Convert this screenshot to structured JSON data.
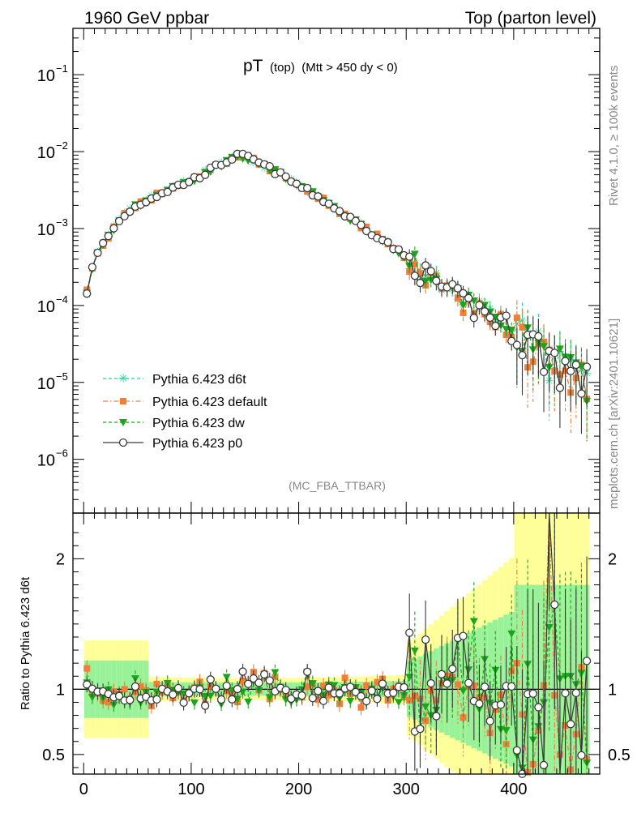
{
  "header": {
    "left": "1960 GeV ppbar",
    "right": "Top (parton level)"
  },
  "side_labels": {
    "rivet": "Rivet 4.1.0, ≥ 100k events",
    "mcplots": "mcplots.cern.ch [arXiv:2401.10621]"
  },
  "analysis_tag": "(MC_FBA_TTBAR)",
  "colors": {
    "d6t": "#2ccf9a",
    "default": "#f07f3a",
    "dw": "#1aa61a",
    "p0": "#3a3a3a",
    "band_yellow": "#ffff99",
    "band_green": "#99f299"
  },
  "chart_data": [
    {
      "type": "line",
      "panel": "main",
      "title": "pT",
      "title_sub": "(top)",
      "title_cut": "(Mtt > 450 dy < 0)",
      "yscale": "log",
      "xlim": [
        -10,
        480
      ],
      "ylim": [
        2e-07,
        0.4
      ],
      "yticks": [
        {
          "value": 1e-06,
          "base": "10",
          "exp": "−6"
        },
        {
          "value": 1e-05,
          "base": "10",
          "exp": "−5"
        },
        {
          "value": 0.0001,
          "base": "10",
          "exp": "−4"
        },
        {
          "value": 0.001,
          "base": "10",
          "exp": "−3"
        },
        {
          "value": 0.01,
          "base": "10",
          "exp": "−2"
        },
        {
          "value": 0.1,
          "base": "10",
          "exp": "−1"
        }
      ],
      "legend": [
        "Pythia 6.423 d6t",
        "Pythia 6.423 default",
        "Pythia 6.423 dw",
        "Pythia 6.423 p0"
      ],
      "reference_curve": {
        "x": [
          3,
          10,
          20,
          30,
          40,
          50,
          60,
          70,
          80,
          90,
          100,
          110,
          120,
          130,
          140,
          145,
          150,
          160,
          170,
          180,
          190,
          200,
          210,
          220,
          230,
          240,
          250,
          260,
          270,
          280,
          290,
          300,
          310,
          320,
          330,
          340,
          350,
          360,
          370,
          380,
          390,
          400,
          410,
          420,
          430,
          440,
          450,
          460,
          470
        ],
        "y": [
          0.00015,
          0.0004,
          0.0007,
          0.0011,
          0.0016,
          0.002,
          0.0024,
          0.0028,
          0.0032,
          0.0037,
          0.0042,
          0.005,
          0.006,
          0.0072,
          0.0085,
          0.009,
          0.0086,
          0.0075,
          0.0064,
          0.0053,
          0.0044,
          0.0036,
          0.003,
          0.0025,
          0.002,
          0.0016,
          0.0013,
          0.00105,
          0.00085,
          0.00068,
          0.00054,
          0.00042,
          0.00033,
          0.00024,
          0.00019,
          0.00015,
          0.00012,
          0.0001,
          8.5e-05,
          7e-05,
          6e-05,
          5e-05,
          4e-05,
          3.2e-05,
          2.5e-05,
          2e-05,
          1.5e-05,
          1.2e-05,
          1e-05
        ]
      }
    },
    {
      "type": "line",
      "panel": "ratio",
      "ylabel": "Ratio to Pythia 6.423 d6t",
      "xlim": [
        -10,
        480
      ],
      "ylim": [
        0.35,
        2.35
      ],
      "reference_line": 1,
      "yticks": [
        {
          "value": 0.5,
          "label": "0.5"
        },
        {
          "value": 1,
          "label": "1"
        },
        {
          "value": 2,
          "label": "2"
        }
      ],
      "xticks": [
        {
          "value": 0,
          "label": "0"
        },
        {
          "value": 100,
          "label": "100"
        },
        {
          "value": 200,
          "label": "200"
        },
        {
          "value": 300,
          "label": "300"
        },
        {
          "value": 400,
          "label": "400"
        }
      ]
    }
  ]
}
